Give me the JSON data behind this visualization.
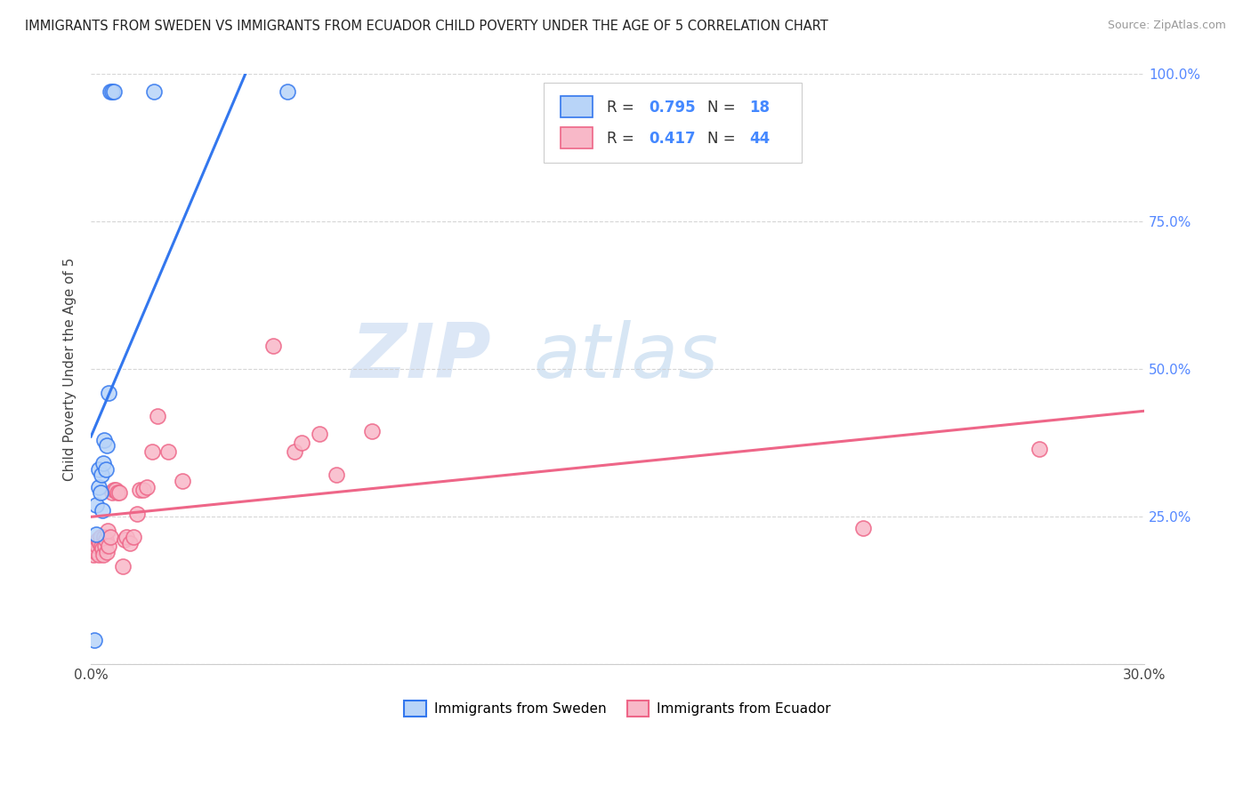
{
  "title": "IMMIGRANTS FROM SWEDEN VS IMMIGRANTS FROM ECUADOR CHILD POVERTY UNDER THE AGE OF 5 CORRELATION CHART",
  "source": "Source: ZipAtlas.com",
  "ylabel": "Child Poverty Under the Age of 5",
  "xlim": [
    0.0,
    0.3
  ],
  "ylim": [
    0.0,
    1.0
  ],
  "sweden_color": "#b8d4f8",
  "ecuador_color": "#f8b8c8",
  "sweden_line_color": "#3377ee",
  "ecuador_line_color": "#ee6688",
  "sweden_R": 0.795,
  "sweden_N": 18,
  "ecuador_R": 0.417,
  "ecuador_N": 44,
  "legend_label_sweden": "Immigrants from Sweden",
  "legend_label_ecuador": "Immigrants from Ecuador",
  "watermark_zip": "ZIP",
  "watermark_atlas": "atlas",
  "sweden_x": [
    0.001,
    0.0015,
    0.0015,
    0.0022,
    0.0022,
    0.0028,
    0.003,
    0.0032,
    0.0035,
    0.0038,
    0.0042,
    0.0045,
    0.005,
    0.0055,
    0.006,
    0.0065,
    0.018,
    0.056
  ],
  "sweden_y": [
    0.04,
    0.22,
    0.27,
    0.3,
    0.33,
    0.29,
    0.32,
    0.26,
    0.34,
    0.38,
    0.33,
    0.37,
    0.46,
    0.97,
    0.97,
    0.97,
    0.97,
    0.97
  ],
  "ecuador_x": [
    0.0008,
    0.001,
    0.0015,
    0.0018,
    0.002,
    0.0022,
    0.0025,
    0.0028,
    0.003,
    0.0032,
    0.0035,
    0.0038,
    0.004,
    0.0042,
    0.0045,
    0.0048,
    0.005,
    0.0055,
    0.006,
    0.0065,
    0.007,
    0.0075,
    0.008,
    0.009,
    0.0095,
    0.01,
    0.011,
    0.012,
    0.013,
    0.014,
    0.015,
    0.016,
    0.0175,
    0.019,
    0.022,
    0.026,
    0.052,
    0.058,
    0.06,
    0.065,
    0.07,
    0.08,
    0.22,
    0.27
  ],
  "ecuador_y": [
    0.185,
    0.195,
    0.19,
    0.2,
    0.21,
    0.185,
    0.205,
    0.215,
    0.2,
    0.195,
    0.185,
    0.215,
    0.2,
    0.21,
    0.19,
    0.225,
    0.2,
    0.215,
    0.29,
    0.295,
    0.295,
    0.29,
    0.29,
    0.165,
    0.21,
    0.215,
    0.205,
    0.215,
    0.255,
    0.295,
    0.295,
    0.3,
    0.36,
    0.42,
    0.36,
    0.31,
    0.54,
    0.36,
    0.375,
    0.39,
    0.32,
    0.395,
    0.23,
    0.365
  ]
}
